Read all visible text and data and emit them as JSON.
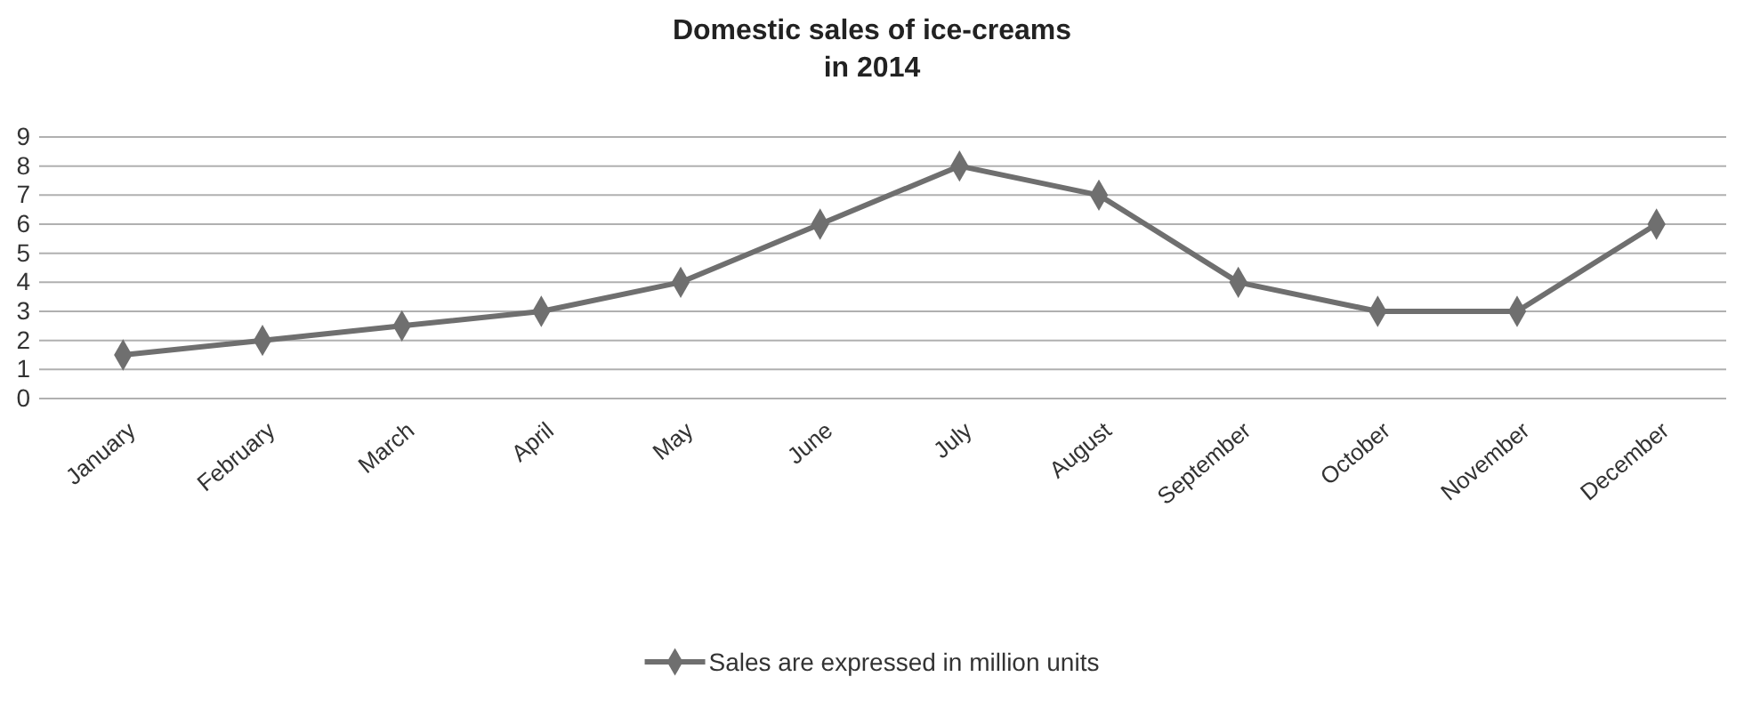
{
  "chart_data": {
    "type": "line",
    "title": "Domestic sales of ice-creams\nin 2014",
    "categories": [
      "January",
      "February",
      "March",
      "April",
      "May",
      "June",
      "July",
      "August",
      "September",
      "October",
      "November",
      "December"
    ],
    "series": [
      {
        "name": "Sales are expressed in million units",
        "color": "#6f6f6f",
        "values": [
          1.5,
          2,
          2.5,
          3,
          4,
          6,
          8,
          7,
          4,
          3,
          3,
          6
        ]
      }
    ],
    "ylim": [
      0,
      9
    ],
    "yticks": [
      0,
      1,
      2,
      3,
      4,
      5,
      6,
      7,
      8,
      9
    ],
    "grid": "y",
    "legend": "bottom",
    "marker": "diamond",
    "line_style": "solid"
  }
}
